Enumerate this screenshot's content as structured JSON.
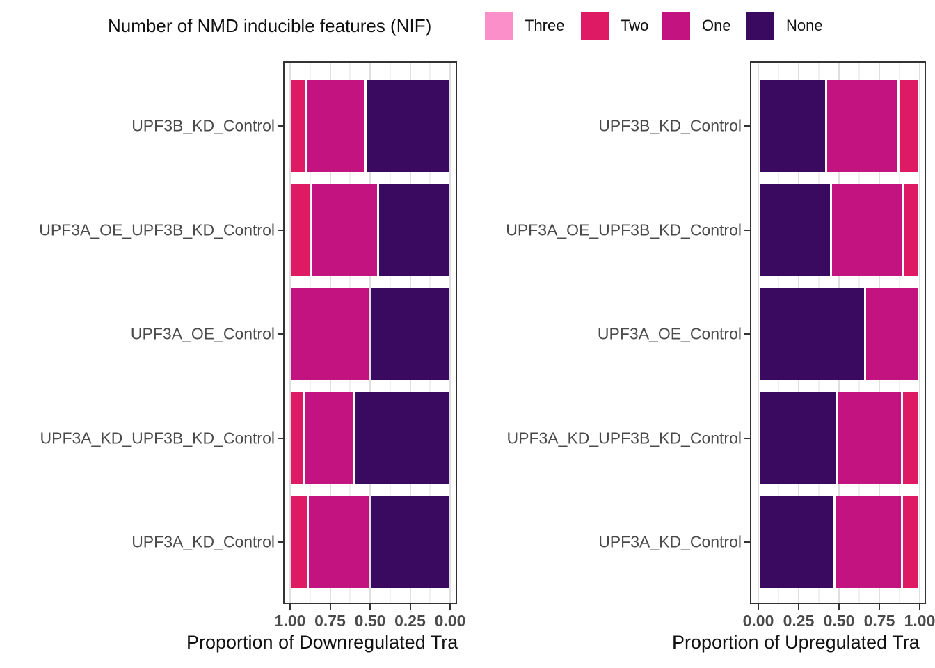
{
  "legend": {
    "title": "Number of NMD inducible features (NIF)",
    "items": [
      {
        "label": "Three",
        "color": "#FB8FC9"
      },
      {
        "label": "Two",
        "color": "#DF1A64"
      },
      {
        "label": "One",
        "color": "#C31380"
      },
      {
        "label": "None",
        "color": "#3A0A60"
      }
    ]
  },
  "colors": {
    "Three": "#FB8FC9",
    "Two": "#DF1A64",
    "One": "#C31380",
    "None": "#3A0A60"
  },
  "chart_data": [
    {
      "type": "bar",
      "subtype": "horizontal_stacked_proportion",
      "title": "",
      "xlabel": "Proportion of Downregulated Tra",
      "ylabel": "",
      "xlim": [
        0,
        1
      ],
      "x_axis_reversed": true,
      "x_ticks": [
        "1.00",
        "0.75",
        "0.50",
        "0.25",
        "0.00"
      ],
      "grid": "major and minor vertical gridlines",
      "legend_position": "top",
      "categories": [
        "UPF3B_KD_Control",
        "UPF3A_OE_UPF3B_KD_Control",
        "UPF3A_OE_Control",
        "UPF3A_KD_UPF3B_KD_Control",
        "UPF3A_KD_Control"
      ],
      "series_order_is_left_to_right": true,
      "series": [
        {
          "name": "Two",
          "values": [
            0.1,
            0.13,
            0.0,
            0.09,
            0.11
          ]
        },
        {
          "name": "One",
          "values": [
            0.37,
            0.42,
            0.5,
            0.31,
            0.39
          ]
        },
        {
          "name": "None",
          "values": [
            0.53,
            0.45,
            0.5,
            0.6,
            0.5
          ]
        }
      ]
    },
    {
      "type": "bar",
      "subtype": "horizontal_stacked_proportion",
      "title": "",
      "xlabel": "Proportion of Upregulated Tra",
      "ylabel": "",
      "xlim": [
        0,
        1
      ],
      "x_axis_reversed": false,
      "x_ticks": [
        "0.00",
        "0.25",
        "0.50",
        "0.75",
        "1.00"
      ],
      "grid": "major and minor vertical gridlines",
      "legend_position": "top",
      "categories": [
        "UPF3B_KD_Control",
        "UPF3A_OE_UPF3B_KD_Control",
        "UPF3A_OE_Control",
        "UPF3A_KD_UPF3B_KD_Control",
        "UPF3A_KD_Control"
      ],
      "series_order_is_left_to_right": true,
      "series": [
        {
          "name": "None",
          "values": [
            0.42,
            0.45,
            0.66,
            0.49,
            0.47
          ]
        },
        {
          "name": "One",
          "values": [
            0.45,
            0.45,
            0.34,
            0.4,
            0.42
          ]
        },
        {
          "name": "Two",
          "values": [
            0.13,
            0.1,
            0.0,
            0.11,
            0.11
          ]
        }
      ]
    }
  ]
}
